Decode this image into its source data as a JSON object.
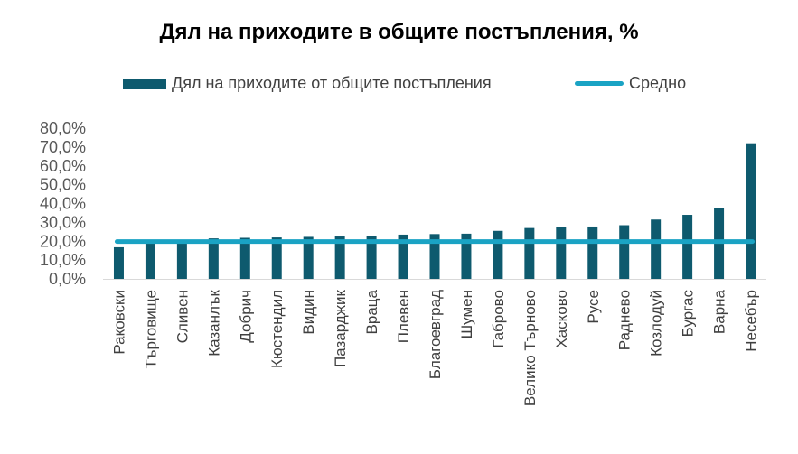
{
  "chart_data": {
    "type": "bar",
    "title": "Дял на приходите в общите постъпления, %",
    "legend": {
      "placement": "top",
      "bar_label": "Дял на приходите от общите постъпления",
      "line_label": "Средно"
    },
    "categories": [
      "Раковски",
      "Търговище",
      "Сливен",
      "Казанлък",
      "Добрич",
      "Кюстендил",
      "Видин",
      "Пазарджик",
      "Враца",
      "Плевен",
      "Благоевград",
      "Шумен",
      "Габрово",
      "Велико Търново",
      "Хасково",
      "Русе",
      "Раднево",
      "Козлодуй",
      "Бургас",
      "Варна",
      "Несебър"
    ],
    "series": [
      {
        "name": "Дял на приходите от общите постъпления",
        "type": "bar",
        "color": "#0e5a6e",
        "values": [
          16.8,
          19.5,
          20.0,
          21.5,
          21.8,
          22.0,
          22.3,
          22.5,
          22.6,
          23.5,
          23.8,
          24.0,
          25.5,
          27.0,
          27.5,
          27.8,
          28.5,
          31.5,
          34.0,
          37.5,
          72.0
        ]
      },
      {
        "name": "Средно",
        "type": "line",
        "color": "#1aa3c4",
        "value": 19.8
      }
    ],
    "yticks": [
      "0,0%",
      "10,0%",
      "20,0%",
      "30,0%",
      "40,0%",
      "50,0%",
      "60,0%",
      "70,0%",
      "80,0%"
    ],
    "ylim": [
      0,
      80
    ],
    "grid": false
  }
}
